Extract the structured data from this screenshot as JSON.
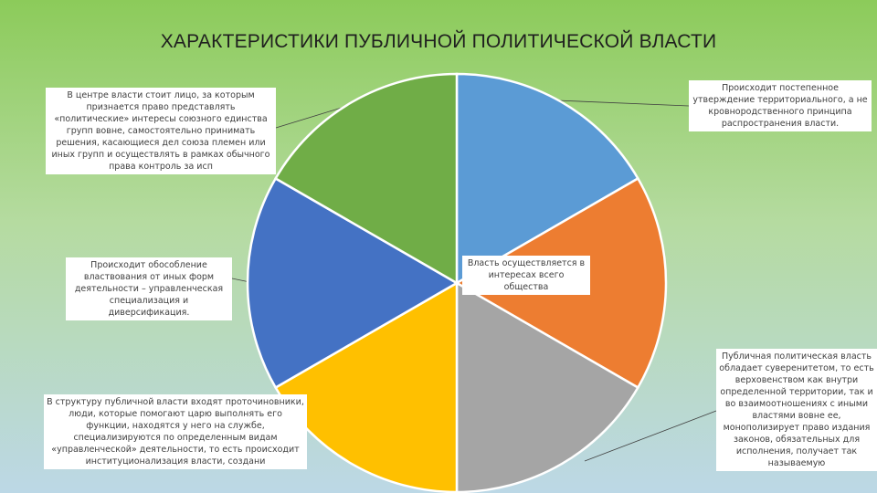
{
  "title": "ХАРАКТЕРИСТИКИ ПУБЛИЧНОЙ ПОЛИТИЧЕСКОЙ ВЛАСТИ",
  "chart_data": {
    "type": "pie",
    "title": "ХАРАКТЕРИСТИКИ ПУБЛИЧНОЙ ПОЛИТИЧЕСКОЙ ВЛАСТИ",
    "values": [
      1,
      1,
      1,
      1,
      1,
      1
    ],
    "colors": [
      "#5b9bd5",
      "#ed7d31",
      "#a5a5a5",
      "#ffc000",
      "#4472c4",
      "#70ad47"
    ],
    "labels": [
      "Происходит постепенное утверждение территориального, а не кровнородственного принципа распространения власти.",
      "Власть осуществляется в интересах всего общества",
      "Публичная политическая власть обладает суверенитетом, то есть верховенством как внутри определенной территории, так и во взаимоотношениях с иными властями вовне ее, монополизирует право издания законов, обязательных для исполнения, получает так называемую",
      "В структуру публичной власти входят проточиновники, люди, которые помогают царю выполнять его функции, находятся у него на службе, специализируются по определенным видам «управленческой» деятельности, то есть происходит институционализация власти, создани",
      "Происходит обособление властвования от иных форм деятельности – управленческая специализация и диверсификация.",
      "В центре власти стоит лицо, за которым признается право представлять «политические» интересы союзного единства групп вовне, самостоятельно принимать решения, касающиеся дел союза племен или иных групп и осуществлять в рамках обычного права контроль за исп"
    ]
  }
}
